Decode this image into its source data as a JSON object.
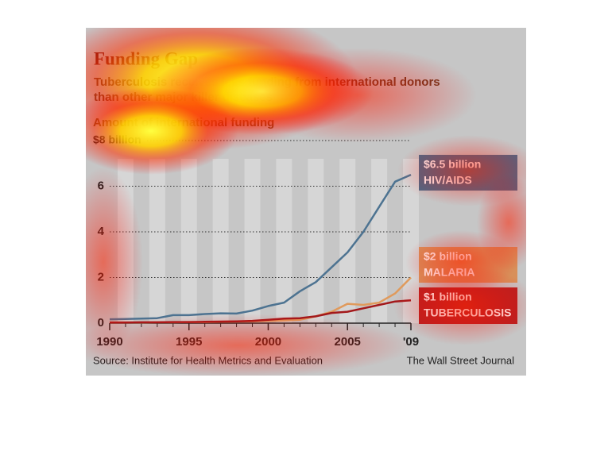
{
  "chart_data": {
    "type": "line",
    "title": "Funding Gap",
    "subtitle": "Tuberculosis receives less funding from international donors than other major killer diseases",
    "y_label": "Amount of international funding",
    "source": "Source: Institute for Health Metrics and Evaluation",
    "credit": "The Wall Street Journal",
    "x": [
      1990,
      1991,
      1992,
      1993,
      1994,
      1995,
      1996,
      1997,
      1998,
      1999,
      2000,
      2001,
      2002,
      2003,
      2004,
      2005,
      2006,
      2007,
      2008,
      2009
    ],
    "xlim": [
      1990,
      2009
    ],
    "xticks": [
      1990,
      1995,
      2000,
      2005,
      {
        "value": 2009,
        "label": "'09"
      }
    ],
    "ylim": [
      0,
      8
    ],
    "yticks": [
      0,
      2,
      4,
      6,
      {
        "value": 8,
        "label": "$8 billion"
      }
    ],
    "grid": true,
    "series": [
      {
        "name": "HIV/AIDS",
        "color": "#4d7391",
        "values": [
          0.17,
          0.18,
          0.2,
          0.22,
          0.35,
          0.35,
          0.4,
          0.43,
          0.42,
          0.55,
          0.75,
          0.9,
          1.4,
          1.8,
          2.45,
          3.1,
          4.0,
          5.1,
          6.2,
          6.5
        ],
        "value_labels": [
          null,
          null,
          null,
          null,
          null,
          null,
          null,
          null,
          null,
          null,
          null,
          null,
          null,
          null,
          null,
          null,
          null,
          null,
          null,
          "$6.5 billion"
        ],
        "label_color": "#4a6a88"
      },
      {
        "name": "MALARIA",
        "color": "#e09a5c",
        "values": [
          0.03,
          0.03,
          0.03,
          0.04,
          0.04,
          0.05,
          0.05,
          0.06,
          0.07,
          0.08,
          0.1,
          0.12,
          0.15,
          0.3,
          0.5,
          0.85,
          0.8,
          0.9,
          1.3,
          2.0
        ],
        "value_labels": [
          null,
          null,
          null,
          null,
          null,
          null,
          null,
          null,
          null,
          null,
          null,
          null,
          null,
          null,
          null,
          null,
          null,
          null,
          null,
          "$2 billion"
        ],
        "label_color": "#d8905a"
      },
      {
        "name": "TUBERCULOSIS",
        "color": "#a3191b",
        "values": [
          0.03,
          0.03,
          0.04,
          0.04,
          0.05,
          0.05,
          0.06,
          0.07,
          0.08,
          0.1,
          0.15,
          0.2,
          0.22,
          0.3,
          0.45,
          0.5,
          0.65,
          0.8,
          0.95,
          1.0
        ],
        "value_labels": [
          null,
          null,
          null,
          null,
          null,
          null,
          null,
          null,
          null,
          null,
          null,
          null,
          null,
          null,
          null,
          null,
          null,
          null,
          null,
          "$1 billion"
        ],
        "label_color": "#b82222"
      }
    ]
  }
}
